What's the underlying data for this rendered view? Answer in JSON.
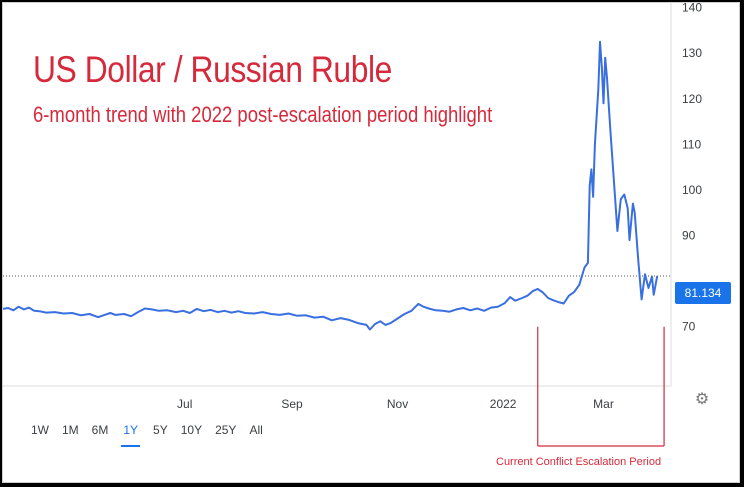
{
  "title": "US Dollar / Russian Ruble",
  "subtitle": "6-month trend with 2022 post-escalation period highlight",
  "last_value": "81.134",
  "annotation": "Current Conflict Escalation Period",
  "ranges": [
    "1W",
    "1M",
    "6M",
    "1Y",
    "5Y",
    "10Y",
    "25Y",
    "All"
  ],
  "active_range": "1Y",
  "icons": {
    "settings": "gear-icon"
  },
  "colors": {
    "line": "#3a6fe0",
    "title": "#d42a3c",
    "badge": "#1a73e8",
    "annotation": "#d42a3c"
  },
  "chart_data": {
    "type": "line",
    "title": "US Dollar / Russian Ruble",
    "subtitle": "6-month trend with 2022 post-escalation period highlight",
    "xlabel": "",
    "ylabel": "",
    "ylim": [
      57,
      141
    ],
    "yticks": [
      70,
      80,
      90,
      100,
      110,
      120,
      130,
      140
    ],
    "ytick_labels": [
      "70",
      "",
      "90",
      "100",
      "110",
      "120",
      "130",
      "140"
    ],
    "xtick_labels": [
      "Jul",
      "Sep",
      "Nov",
      "2022",
      "Mar"
    ],
    "xtick_days": [
      105,
      167,
      228,
      289,
      347
    ],
    "x_range_days": [
      0,
      386
    ],
    "grid": false,
    "reference_line": 81.134,
    "highlight_days": [
      309,
      382
    ],
    "series": [
      {
        "values": [
          [
            0,
            73.9
          ],
          [
            3,
            74.1
          ],
          [
            6,
            73.6
          ],
          [
            9,
            74.4
          ],
          [
            12,
            73.8
          ],
          [
            15,
            74.2
          ],
          [
            18,
            73.5
          ],
          [
            21,
            73.4
          ],
          [
            25,
            73.1
          ],
          [
            30,
            73.2
          ],
          [
            35,
            72.9
          ],
          [
            40,
            73.0
          ],
          [
            45,
            72.5
          ],
          [
            50,
            72.8
          ],
          [
            55,
            72.1
          ],
          [
            58,
            72.5
          ],
          [
            62,
            73.0
          ],
          [
            65,
            72.6
          ],
          [
            70,
            72.8
          ],
          [
            74,
            72.3
          ],
          [
            78,
            73.2
          ],
          [
            82,
            74.0
          ],
          [
            86,
            73.8
          ],
          [
            90,
            73.5
          ],
          [
            95,
            73.6
          ],
          [
            100,
            73.2
          ],
          [
            104,
            73.5
          ],
          [
            108,
            73.0
          ],
          [
            112,
            73.9
          ],
          [
            116,
            73.4
          ],
          [
            120,
            73.7
          ],
          [
            124,
            73.2
          ],
          [
            128,
            73.5
          ],
          [
            132,
            73.1
          ],
          [
            136,
            73.4
          ],
          [
            140,
            73.0
          ],
          [
            145,
            72.9
          ],
          [
            150,
            73.2
          ],
          [
            155,
            72.8
          ],
          [
            160,
            72.6
          ],
          [
            165,
            72.9
          ],
          [
            170,
            72.4
          ],
          [
            175,
            72.5
          ],
          [
            180,
            72.0
          ],
          [
            185,
            72.2
          ],
          [
            190,
            71.4
          ],
          [
            195,
            71.9
          ],
          [
            200,
            71.5
          ],
          [
            205,
            70.8
          ],
          [
            210,
            70.4
          ],
          [
            212,
            69.4
          ],
          [
            215,
            70.6
          ],
          [
            218,
            71.2
          ],
          [
            221,
            70.4
          ],
          [
            224,
            70.8
          ],
          [
            228,
            71.8
          ],
          [
            232,
            72.8
          ],
          [
            236,
            73.5
          ],
          [
            240,
            75.0
          ],
          [
            243,
            74.4
          ],
          [
            246,
            74.0
          ],
          [
            250,
            73.6
          ],
          [
            254,
            73.5
          ],
          [
            258,
            73.3
          ],
          [
            262,
            73.8
          ],
          [
            266,
            74.1
          ],
          [
            270,
            73.6
          ],
          [
            274,
            74.0
          ],
          [
            278,
            73.5
          ],
          [
            282,
            74.2
          ],
          [
            286,
            74.4
          ],
          [
            290,
            75.2
          ],
          [
            293,
            76.5
          ],
          [
            296,
            75.7
          ],
          [
            300,
            76.3
          ],
          [
            303,
            76.8
          ],
          [
            306,
            77.8
          ],
          [
            309,
            78.3
          ],
          [
            312,
            77.5
          ],
          [
            315,
            76.3
          ],
          [
            318,
            75.8
          ],
          [
            321,
            75.4
          ],
          [
            324,
            75.1
          ],
          [
            327,
            76.8
          ],
          [
            330,
            77.6
          ],
          [
            333,
            79.2
          ],
          [
            336,
            83.0
          ],
          [
            338,
            84.0
          ],
          [
            339,
            101.0
          ],
          [
            340,
            104.5
          ],
          [
            341,
            98.5
          ],
          [
            342,
            110.0
          ],
          [
            344,
            122.0
          ],
          [
            345,
            132.5
          ],
          [
            346,
            127.0
          ],
          [
            347,
            119.0
          ],
          [
            348,
            129.0
          ],
          [
            349,
            124.5
          ],
          [
            351,
            113.0
          ],
          [
            353,
            102.0
          ],
          [
            355,
            91.0
          ],
          [
            357,
            98.0
          ],
          [
            359,
            99.0
          ],
          [
            361,
            96.0
          ],
          [
            362,
            89.0
          ],
          [
            364,
            97.0
          ],
          [
            365,
            95.0
          ],
          [
            367,
            85.0
          ],
          [
            369,
            76.0
          ],
          [
            371,
            81.5
          ],
          [
            373,
            78.5
          ],
          [
            375,
            81.0
          ],
          [
            376,
            77.0
          ],
          [
            378,
            81.1
          ]
        ]
      }
    ]
  }
}
